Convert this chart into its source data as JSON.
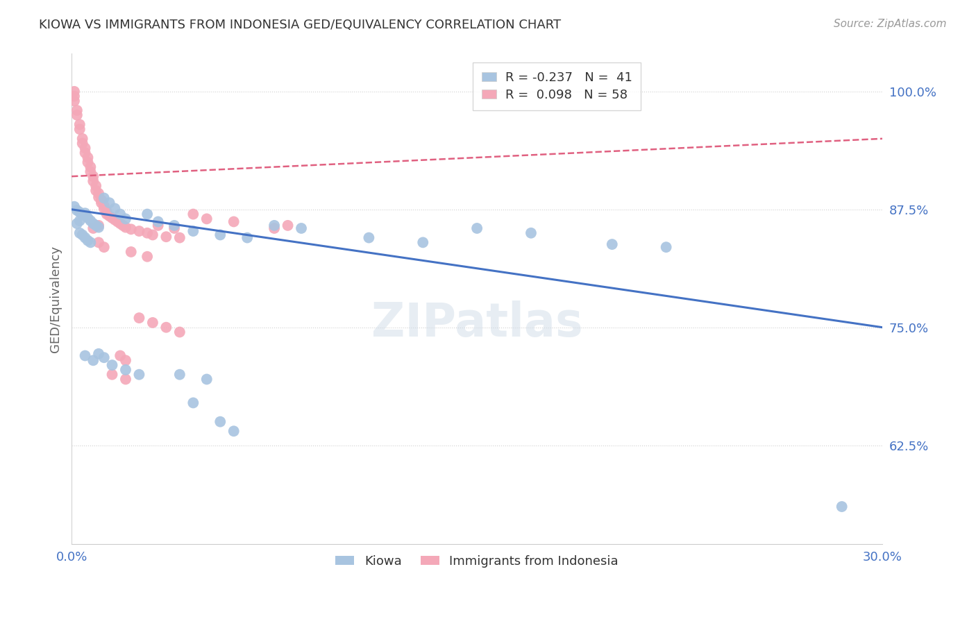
{
  "title": "KIOWA VS IMMIGRANTS FROM INDONESIA GED/EQUIVALENCY CORRELATION CHART",
  "source": "Source: ZipAtlas.com",
  "ylabel": "GED/Equivalency",
  "ytick_labels": [
    "100.0%",
    "87.5%",
    "75.0%",
    "62.5%"
  ],
  "ytick_values": [
    1.0,
    0.875,
    0.75,
    0.625
  ],
  "xlim": [
    0.0,
    0.3
  ],
  "ylim": [
    0.52,
    1.04
  ],
  "blue_color": "#a8c4e0",
  "pink_color": "#f4a8b8",
  "blue_line_color": "#4472c4",
  "pink_line_color": "#e06080",
  "background_color": "#ffffff",
  "grid_color": "#d0d0d0",
  "title_color": "#333333",
  "axis_color": "#4472c4",
  "blue_points": [
    [
      0.001,
      0.878
    ],
    [
      0.002,
      0.874
    ],
    [
      0.003,
      0.872
    ],
    [
      0.004,
      0.869
    ],
    [
      0.005,
      0.871
    ],
    [
      0.006,
      0.866
    ],
    [
      0.007,
      0.863
    ],
    [
      0.008,
      0.86
    ],
    [
      0.009,
      0.858
    ],
    [
      0.01,
      0.856
    ],
    [
      0.012,
      0.887
    ],
    [
      0.014,
      0.882
    ],
    [
      0.016,
      0.876
    ],
    [
      0.018,
      0.87
    ],
    [
      0.02,
      0.865
    ],
    [
      0.003,
      0.85
    ],
    [
      0.004,
      0.848
    ],
    [
      0.005,
      0.845
    ],
    [
      0.006,
      0.842
    ],
    [
      0.007,
      0.84
    ],
    [
      0.002,
      0.86
    ],
    [
      0.003,
      0.863
    ],
    [
      0.028,
      0.87
    ],
    [
      0.032,
      0.862
    ],
    [
      0.038,
      0.858
    ],
    [
      0.045,
      0.852
    ],
    [
      0.055,
      0.848
    ],
    [
      0.065,
      0.845
    ],
    [
      0.075,
      0.858
    ],
    [
      0.085,
      0.855
    ],
    [
      0.005,
      0.72
    ],
    [
      0.008,
      0.715
    ],
    [
      0.01,
      0.722
    ],
    [
      0.012,
      0.718
    ],
    [
      0.015,
      0.71
    ],
    [
      0.02,
      0.705
    ],
    [
      0.025,
      0.7
    ],
    [
      0.045,
      0.67
    ],
    [
      0.055,
      0.65
    ],
    [
      0.06,
      0.64
    ],
    [
      0.285,
      0.56
    ]
  ],
  "blue_outlier_low": [
    [
      0.04,
      0.7
    ],
    [
      0.05,
      0.695
    ],
    [
      0.11,
      0.845
    ],
    [
      0.13,
      0.84
    ],
    [
      0.15,
      0.855
    ],
    [
      0.17,
      0.85
    ],
    [
      0.2,
      0.838
    ],
    [
      0.22,
      0.835
    ]
  ],
  "pink_points": [
    [
      0.001,
      1.0
    ],
    [
      0.001,
      0.995
    ],
    [
      0.001,
      0.99
    ],
    [
      0.002,
      0.98
    ],
    [
      0.002,
      0.975
    ],
    [
      0.003,
      0.965
    ],
    [
      0.003,
      0.96
    ],
    [
      0.004,
      0.95
    ],
    [
      0.004,
      0.945
    ],
    [
      0.005,
      0.94
    ],
    [
      0.005,
      0.935
    ],
    [
      0.006,
      0.93
    ],
    [
      0.006,
      0.925
    ],
    [
      0.007,
      0.92
    ],
    [
      0.007,
      0.915
    ],
    [
      0.008,
      0.91
    ],
    [
      0.008,
      0.905
    ],
    [
      0.009,
      0.9
    ],
    [
      0.009,
      0.895
    ],
    [
      0.01,
      0.892
    ],
    [
      0.01,
      0.888
    ],
    [
      0.011,
      0.885
    ],
    [
      0.011,
      0.882
    ],
    [
      0.012,
      0.879
    ],
    [
      0.012,
      0.876
    ],
    [
      0.013,
      0.873
    ],
    [
      0.013,
      0.87
    ],
    [
      0.014,
      0.868
    ],
    [
      0.015,
      0.866
    ],
    [
      0.016,
      0.864
    ],
    [
      0.017,
      0.862
    ],
    [
      0.018,
      0.86
    ],
    [
      0.019,
      0.858
    ],
    [
      0.02,
      0.856
    ],
    [
      0.022,
      0.854
    ],
    [
      0.025,
      0.852
    ],
    [
      0.028,
      0.85
    ],
    [
      0.03,
      0.848
    ],
    [
      0.035,
      0.846
    ],
    [
      0.04,
      0.845
    ],
    [
      0.045,
      0.87
    ],
    [
      0.05,
      0.865
    ],
    [
      0.06,
      0.862
    ],
    [
      0.018,
      0.72
    ],
    [
      0.02,
      0.715
    ],
    [
      0.025,
      0.76
    ],
    [
      0.03,
      0.755
    ],
    [
      0.035,
      0.75
    ],
    [
      0.04,
      0.745
    ],
    [
      0.015,
      0.7
    ],
    [
      0.02,
      0.695
    ],
    [
      0.01,
      0.84
    ],
    [
      0.012,
      0.835
    ],
    [
      0.022,
      0.83
    ],
    [
      0.028,
      0.825
    ],
    [
      0.032,
      0.858
    ],
    [
      0.038,
      0.855
    ],
    [
      0.008,
      0.855
    ],
    [
      0.01,
      0.858
    ],
    [
      0.075,
      0.855
    ],
    [
      0.08,
      0.858
    ]
  ],
  "blue_line_x": [
    0.0,
    0.3
  ],
  "blue_line_y": [
    0.875,
    0.75
  ],
  "pink_line_x": [
    0.0,
    0.3
  ],
  "pink_line_y": [
    0.91,
    0.95
  ]
}
